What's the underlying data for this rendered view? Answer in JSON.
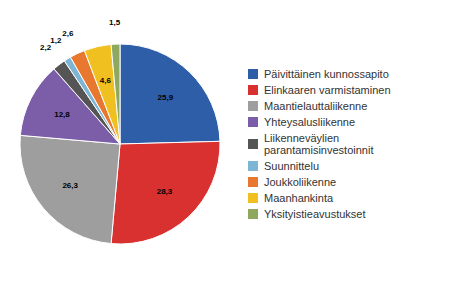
{
  "chart_data": {
    "type": "pie",
    "categories": [
      "Päivittäinen kunnossapito",
      "Elinkaaren varmistaminen",
      "Maantielauttaliikenne",
      "Yhteysalusliikenne",
      "Liikenneväylien\nparantamisinvestoinnit",
      "Suunnittelu",
      "Joukkoliikenne",
      "Maanhankinta",
      "Yksityistieavustukset"
    ],
    "values": [
      25.9,
      28.3,
      26.3,
      12.8,
      2.2,
      1.2,
      2.6,
      4.6,
      1.5
    ],
    "value_labels": [
      "25,9",
      "28,3",
      "26,3",
      "12,8",
      "2,2",
      "1,2",
      "2,6",
      "4,6",
      "1,5"
    ],
    "colors": [
      "#2E5EA8",
      "#D93030",
      "#9E9E9E",
      "#7B5EA7",
      "#555555",
      "#7EB4D4",
      "#E87830",
      "#F0C020",
      "#8FA860"
    ],
    "data_labels": true,
    "legend": "right"
  }
}
